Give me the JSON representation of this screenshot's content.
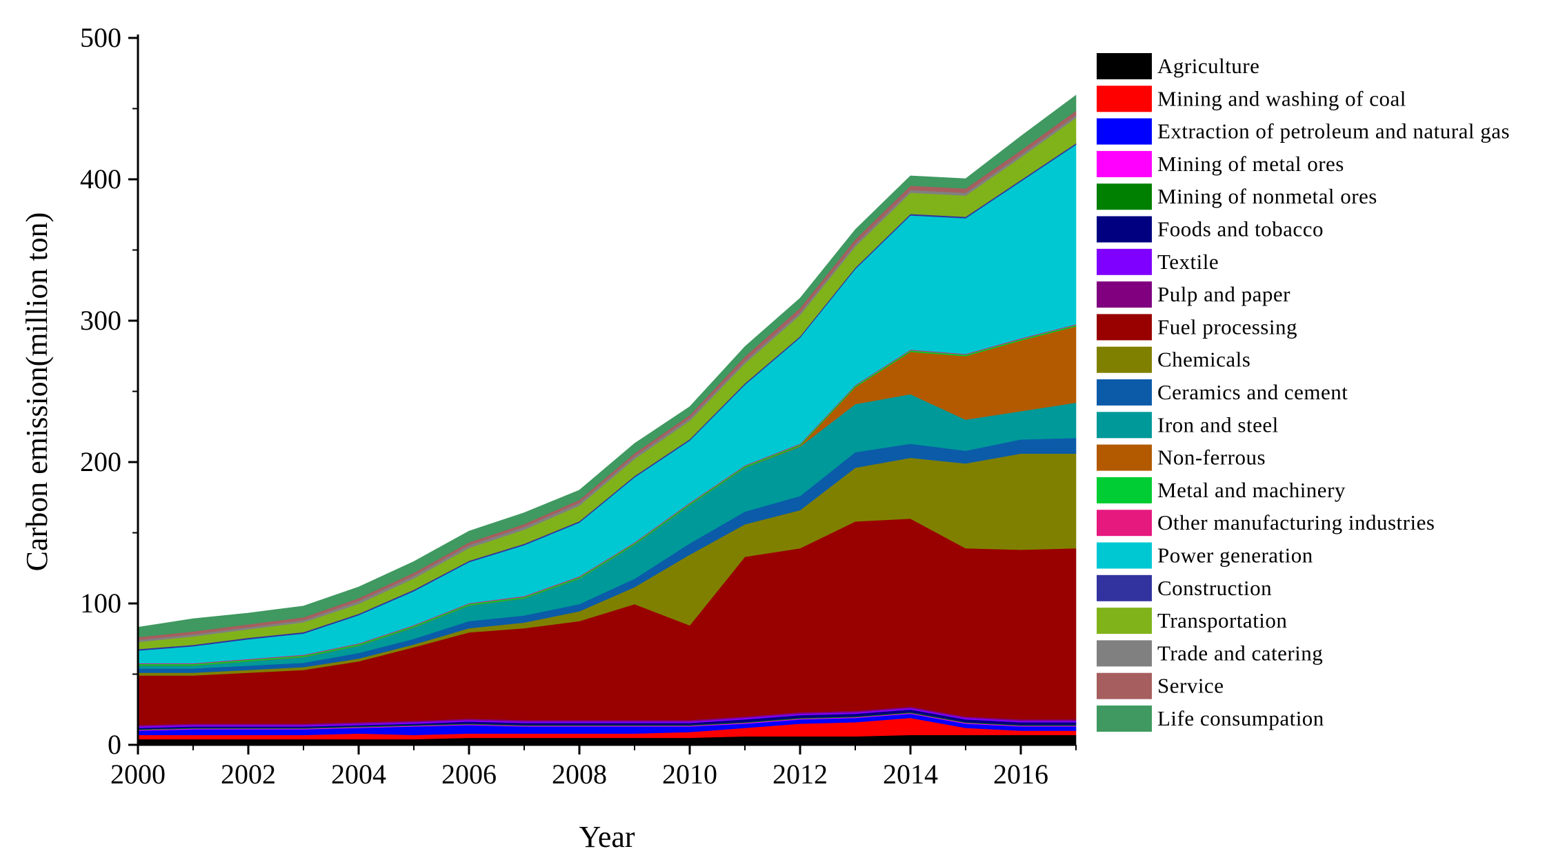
{
  "chart_data": {
    "type": "area",
    "stacked": true,
    "title": "",
    "xlabel": "Year",
    "ylabel": "Carbon emission(million ton)",
    "xlim": [
      2000,
      2017
    ],
    "ylim": [
      0,
      500
    ],
    "x_ticks": [
      2000,
      2002,
      2004,
      2006,
      2008,
      2010,
      2012,
      2014,
      2016
    ],
    "y_ticks": [
      0,
      100,
      200,
      300,
      400,
      500
    ],
    "grid": false,
    "legend_position": "right",
    "x": [
      2000,
      2001,
      2002,
      2003,
      2004,
      2005,
      2006,
      2007,
      2008,
      2009,
      2010,
      2011,
      2012,
      2013,
      2014,
      2015,
      2016,
      2017
    ],
    "series": [
      {
        "name": "Agriculture",
        "color": "#000000",
        "values": [
          4,
          4,
          4,
          4,
          4,
          4,
          5,
          5,
          5,
          5,
          5,
          6,
          6,
          6,
          7,
          7,
          7,
          7
        ]
      },
      {
        "name": "Mining and washing of coal",
        "color": "#FF0000",
        "values": [
          3,
          3,
          3,
          3,
          4,
          3,
          3,
          3,
          3,
          3,
          4,
          6,
          9,
          10,
          12,
          5,
          3,
          3
        ]
      },
      {
        "name": "Extraction of petroleum and natural gas",
        "color": "#0000FF",
        "values": [
          3,
          4,
          4,
          4,
          4,
          6,
          6,
          5,
          5,
          5,
          4,
          3,
          3,
          3,
          3,
          3,
          3,
          3
        ]
      },
      {
        "name": "Mining of metal ores",
        "color": "#FF00FF",
        "values": [
          0.5,
          0.5,
          0.5,
          0.5,
          0.5,
          0.5,
          0.5,
          0.5,
          0.5,
          0.5,
          0.5,
          0.5,
          0.5,
          0.5,
          0.5,
          0.5,
          0.5,
          0.5
        ]
      },
      {
        "name": "Mining  of nonmetal ores",
        "color": "#008000",
        "values": [
          0.5,
          0.5,
          0.5,
          0.5,
          0.5,
          0.5,
          0.5,
          0.5,
          0.5,
          0.5,
          0.5,
          0.5,
          0.5,
          0.5,
          0.5,
          0.5,
          0.5,
          0.5
        ]
      },
      {
        "name": "Foods and tobacco",
        "color": "#000080",
        "values": [
          1,
          1,
          1,
          1,
          1,
          1,
          1.5,
          1.5,
          1.5,
          1.5,
          1.5,
          2,
          2,
          2,
          2,
          2,
          2,
          2
        ]
      },
      {
        "name": "Textile",
        "color": "#8000FF",
        "values": [
          1,
          1,
          1,
          1,
          1,
          1,
          1,
          1,
          1,
          1,
          1,
          1,
          1,
          1,
          1,
          1,
          1,
          1
        ]
      },
      {
        "name": "Pulp and paper",
        "color": "#800080",
        "values": [
          1,
          1,
          1,
          1,
          1,
          1,
          1,
          1,
          1,
          1,
          1,
          1,
          1,
          1,
          1,
          1,
          1,
          1
        ]
      },
      {
        "name": "Fuel processing",
        "color": "#990000",
        "values": [
          35,
          34,
          36,
          38,
          43,
          52,
          61,
          65,
          70,
          82,
          67,
          113,
          116,
          134,
          133,
          119,
          120,
          121
        ]
      },
      {
        "name": "Chemicals",
        "color": "#808000",
        "values": [
          2,
          2,
          2,
          2,
          2,
          2,
          3,
          4,
          7,
          12,
          50,
          23,
          27,
          38,
          43,
          60,
          68,
          67
        ]
      },
      {
        "name": "Ceramics and cement",
        "color": "#0B5BA9",
        "values": [
          3,
          3,
          3,
          3,
          4,
          4,
          5,
          5,
          5,
          6,
          8,
          9,
          10,
          11,
          10,
          9,
          10,
          11
        ]
      },
      {
        "name": "Iron and steel",
        "color": "#009999",
        "values": [
          2,
          2,
          3,
          4,
          5,
          8,
          11,
          12,
          18,
          24,
          27,
          31,
          35,
          34,
          35,
          22,
          20,
          25
        ]
      },
      {
        "name": "Non-ferrous",
        "color": "#B35A00",
        "values": [
          0.2,
          0.2,
          0.2,
          0.2,
          0.2,
          0.2,
          0.2,
          0.2,
          0.2,
          0.2,
          0.2,
          0.2,
          0.5,
          12,
          30,
          45,
          50,
          54
        ]
      },
      {
        "name": "Metal and machinery",
        "color": "#00CC33",
        "values": [
          1,
          1,
          1,
          1,
          1,
          1,
          1,
          1,
          1,
          1,
          1,
          1,
          1,
          1,
          1,
          1,
          1,
          1
        ]
      },
      {
        "name": "Other manufacturing industries",
        "color": "#E6197F",
        "values": [
          0.5,
          0.5,
          0.5,
          0.5,
          0.5,
          0.5,
          0.5,
          0.5,
          0.5,
          0.5,
          0.5,
          0.5,
          0.5,
          0.5,
          0.5,
          0.5,
          0.5,
          0.5
        ]
      },
      {
        "name": "Power generation",
        "color": "#00C8D2",
        "values": [
          9,
          12,
          14,
          15,
          20,
          24,
          29,
          36,
          38,
          46,
          44,
          57,
          75,
          82,
          95,
          96,
          111,
          127
        ]
      },
      {
        "name": "Construction",
        "color": "#3333A0",
        "values": [
          1,
          1,
          1,
          1,
          1,
          1,
          1,
          1,
          1,
          1,
          1,
          1,
          1,
          1,
          1,
          1,
          1,
          1
        ]
      },
      {
        "name": "Transportation",
        "color": "#80B31A",
        "values": [
          5,
          6,
          6,
          7,
          7,
          8,
          9,
          10,
          11,
          12,
          13,
          14,
          15,
          15,
          15,
          15,
          16,
          18
        ]
      },
      {
        "name": "Trade and catering",
        "color": "#808080",
        "values": [
          1.5,
          1.5,
          1.5,
          1.5,
          2,
          2,
          2,
          2,
          2,
          2,
          2,
          2,
          2,
          2,
          2,
          2,
          2,
          2
        ]
      },
      {
        "name": "Service",
        "color": "#A65E5E",
        "values": [
          2,
          2,
          2,
          2,
          2,
          2,
          2,
          2,
          2,
          2,
          2,
          3,
          3,
          3,
          3,
          3,
          3,
          3
        ]
      },
      {
        "name": "Life consumpation",
        "color": "#3F9960",
        "values": [
          7,
          9,
          8,
          8,
          8,
          8,
          8,
          8,
          7,
          7,
          6,
          7,
          7,
          7,
          7,
          7,
          10,
          11
        ]
      }
    ]
  }
}
